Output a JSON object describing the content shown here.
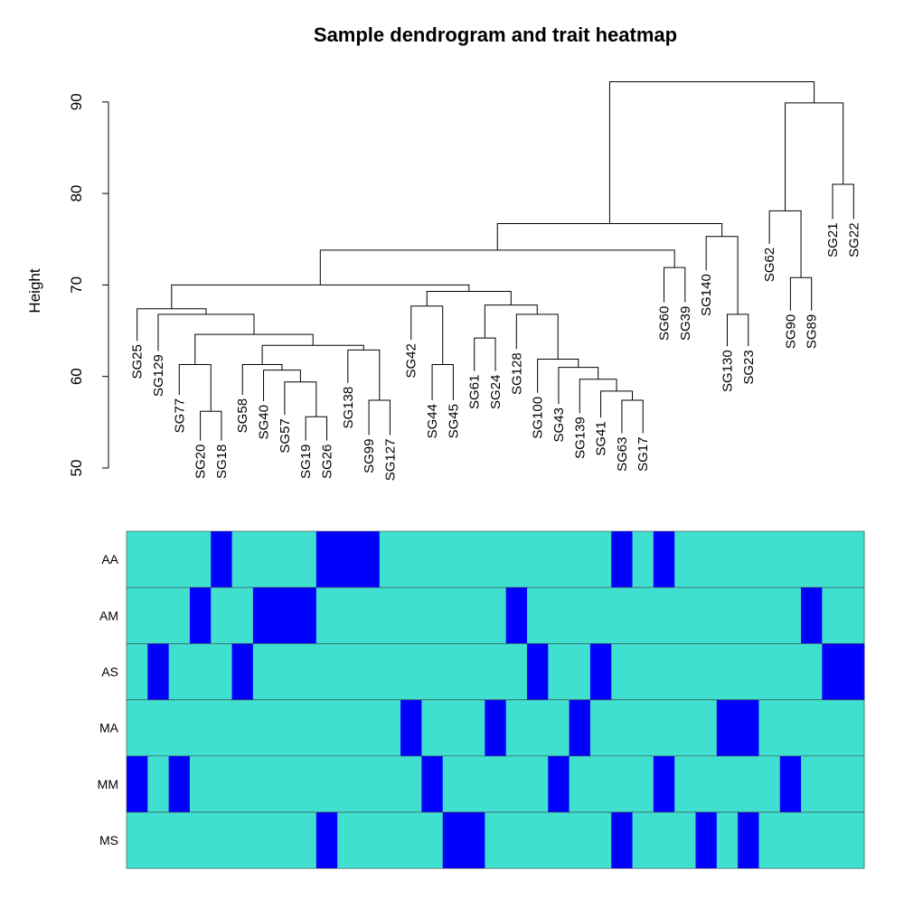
{
  "chart_data": {
    "type": "heatmap",
    "title": "Sample dendrogram and trait heatmap",
    "ylabel": "Height",
    "yticks": [
      50,
      60,
      70,
      80,
      90
    ],
    "ylim": [
      50,
      94
    ],
    "colors": {
      "line": "#000000",
      "present": "#0000ff",
      "absent": "#40e0d0",
      "row_border": "#444444"
    },
    "leaves": [
      {
        "label": "SG25",
        "height": 63.9
      },
      {
        "label": "SG129",
        "height": 62.8
      },
      {
        "label": "SG77",
        "height": 58.0
      },
      {
        "label": "SG20",
        "height": 53.0
      },
      {
        "label": "SG18",
        "height": 53.0
      },
      {
        "label": "SG58",
        "height": 58.0
      },
      {
        "label": "SG40",
        "height": 57.3
      },
      {
        "label": "SG57",
        "height": 55.8
      },
      {
        "label": "SG19",
        "height": 53.0
      },
      {
        "label": "SG26",
        "height": 53.0
      },
      {
        "label": "SG138",
        "height": 59.3
      },
      {
        "label": "SG99",
        "height": 53.6
      },
      {
        "label": "SG127",
        "height": 53.6
      },
      {
        "label": "SG42",
        "height": 64.0
      },
      {
        "label": "SG44",
        "height": 57.4
      },
      {
        "label": "SG45",
        "height": 57.4
      },
      {
        "label": "SG61",
        "height": 60.6
      },
      {
        "label": "SG24",
        "height": 60.6
      },
      {
        "label": "SG128",
        "height": 63.0
      },
      {
        "label": "SG100",
        "height": 58.2
      },
      {
        "label": "SG43",
        "height": 57.0
      },
      {
        "label": "SG139",
        "height": 56.0
      },
      {
        "label": "SG41",
        "height": 55.5
      },
      {
        "label": "SG63",
        "height": 53.8
      },
      {
        "label": "SG17",
        "height": 53.8
      },
      {
        "label": "SG60",
        "height": 68.1
      },
      {
        "label": "SG39",
        "height": 68.1
      },
      {
        "label": "SG140",
        "height": 71.6
      },
      {
        "label": "SG130",
        "height": 63.3
      },
      {
        "label": "SG23",
        "height": 63.3
      },
      {
        "label": "SG62",
        "height": 74.5
      },
      {
        "label": "SG90",
        "height": 67.2
      },
      {
        "label": "SG89",
        "height": 67.2
      },
      {
        "label": "SG21",
        "height": 77.2
      },
      {
        "label": "SG22",
        "height": 77.2
      }
    ],
    "merges": [
      [
        -4,
        -5,
        56.2
      ],
      [
        -3,
        1,
        61.3
      ],
      [
        -9,
        -10,
        55.6
      ],
      [
        -8,
        3,
        59.4
      ],
      [
        -7,
        4,
        60.7
      ],
      [
        -6,
        5,
        61.3
      ],
      [
        -12,
        -13,
        57.4
      ],
      [
        -11,
        7,
        62.9
      ],
      [
        6,
        8,
        63.4
      ],
      [
        2,
        9,
        64.6
      ],
      [
        -2,
        10,
        66.8
      ],
      [
        -1,
        11,
        67.4
      ],
      [
        -15,
        -16,
        61.3
      ],
      [
        -14,
        13,
        67.7
      ],
      [
        -17,
        -18,
        64.2
      ],
      [
        -24,
        -25,
        57.4
      ],
      [
        -23,
        16,
        58.4
      ],
      [
        -22,
        17,
        59.7
      ],
      [
        -21,
        18,
        61.0
      ],
      [
        -20,
        19,
        61.9
      ],
      [
        -19,
        20,
        66.8
      ],
      [
        15,
        21,
        67.8
      ],
      [
        14,
        22,
        69.3
      ],
      [
        12,
        23,
        70.0
      ],
      [
        -26,
        -27,
        71.9
      ],
      [
        24,
        25,
        73.8
      ],
      [
        -29,
        -30,
        66.8
      ],
      [
        -28,
        27,
        75.3
      ],
      [
        26,
        28,
        76.7
      ],
      [
        -32,
        -33,
        70.8
      ],
      [
        -31,
        30,
        78.1
      ],
      [
        -34,
        -35,
        81.0
      ],
      [
        31,
        32,
        89.9
      ],
      [
        29,
        33,
        92.2
      ]
    ],
    "traits": [
      {
        "name": "AA",
        "values": [
          0,
          0,
          0,
          0,
          1,
          0,
          0,
          0,
          0,
          1,
          1,
          1,
          0,
          0,
          0,
          0,
          0,
          0,
          0,
          0,
          0,
          0,
          0,
          1,
          0,
          1,
          0,
          0,
          0,
          0,
          0,
          0,
          0,
          0,
          0
        ]
      },
      {
        "name": "AM",
        "values": [
          0,
          0,
          0,
          1,
          0,
          0,
          1,
          1,
          1,
          0,
          0,
          0,
          0,
          0,
          0,
          0,
          0,
          0,
          1,
          0,
          0,
          0,
          0,
          0,
          0,
          0,
          0,
          0,
          0,
          0,
          0,
          0,
          1,
          0,
          0
        ]
      },
      {
        "name": "AS",
        "values": [
          0,
          1,
          0,
          0,
          0,
          1,
          0,
          0,
          0,
          0,
          0,
          0,
          0,
          0,
          0,
          0,
          0,
          0,
          0,
          1,
          0,
          0,
          1,
          0,
          0,
          0,
          0,
          0,
          0,
          0,
          0,
          0,
          0,
          1,
          1
        ]
      },
      {
        "name": "MA",
        "values": [
          0,
          0,
          0,
          0,
          0,
          0,
          0,
          0,
          0,
          0,
          0,
          0,
          0,
          1,
          0,
          0,
          0,
          1,
          0,
          0,
          0,
          1,
          0,
          0,
          0,
          0,
          0,
          0,
          1,
          1,
          0,
          0,
          0,
          0,
          0
        ]
      },
      {
        "name": "MM",
        "values": [
          1,
          0,
          1,
          0,
          0,
          0,
          0,
          0,
          0,
          0,
          0,
          0,
          0,
          0,
          1,
          0,
          0,
          0,
          0,
          0,
          1,
          0,
          0,
          0,
          0,
          1,
          0,
          0,
          0,
          0,
          0,
          1,
          0,
          0,
          0
        ]
      },
      {
        "name": "MS",
        "values": [
          0,
          0,
          0,
          0,
          0,
          0,
          0,
          0,
          0,
          1,
          0,
          0,
          0,
          0,
          0,
          1,
          1,
          0,
          0,
          0,
          0,
          0,
          0,
          1,
          0,
          0,
          0,
          1,
          0,
          1,
          0,
          0,
          0,
          0,
          0
        ]
      }
    ]
  }
}
